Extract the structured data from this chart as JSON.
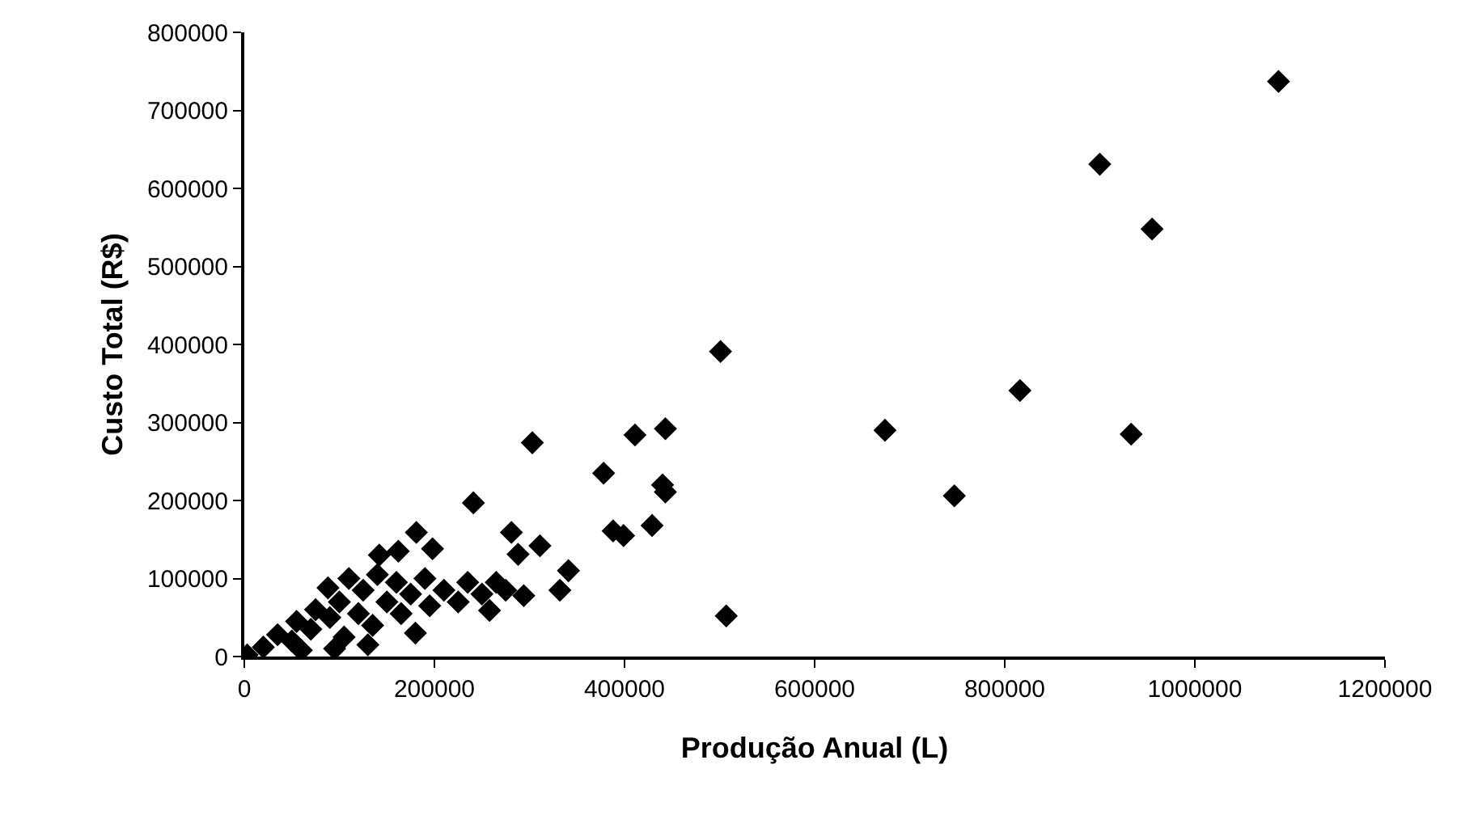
{
  "chart_data": {
    "type": "scatter",
    "xlabel": "Produção Anual (L)",
    "ylabel": "Custo Total (R$)",
    "xlim": [
      0,
      1200000
    ],
    "ylim": [
      0,
      800000
    ],
    "xticks": [
      0,
      200000,
      400000,
      600000,
      800000,
      1000000,
      1200000
    ],
    "yticks": [
      0,
      100000,
      200000,
      300000,
      400000,
      500000,
      600000,
      700000,
      800000
    ],
    "grid": false,
    "legend": false,
    "marker": "diamond",
    "series": [
      {
        "color": "#000000",
        "x": [
          1088000,
          900000,
          955000,
          501000,
          816000,
          674000,
          933000,
          747000,
          507000,
          443000,
          411000,
          378000,
          440000,
          443000,
          429000,
          388000,
          399000,
          341000,
          332000,
          303000,
          241000,
          181000,
          281000,
          311000,
          288000,
          142000,
          162000,
          198000,
          294000,
          258000,
          180000,
          3000,
          20000,
          35000,
          50000,
          55000,
          70000,
          75000,
          90000,
          88000,
          100000,
          105000,
          110000,
          120000,
          125000,
          135000,
          140000,
          150000,
          160000,
          165000,
          175000,
          190000,
          195000,
          210000,
          225000,
          235000,
          250000,
          265000,
          275000,
          60000,
          95000,
          130000
        ],
        "values": [
          737000,
          631000,
          548000,
          391000,
          341000,
          290000,
          285000,
          206000,
          52000,
          292000,
          284000,
          235000,
          220000,
          211000,
          168000,
          161000,
          155000,
          110000,
          85000,
          274000,
          197000,
          159000,
          159000,
          142000,
          131000,
          130000,
          135000,
          138000,
          78000,
          59000,
          30000,
          2000,
          12000,
          28000,
          20000,
          45000,
          35000,
          60000,
          50000,
          88000,
          70000,
          25000,
          100000,
          55000,
          85000,
          40000,
          105000,
          70000,
          95000,
          55000,
          80000,
          100000,
          65000,
          85000,
          70000,
          95000,
          80000,
          95000,
          85000,
          8000,
          10000,
          15000
        ]
      }
    ]
  }
}
